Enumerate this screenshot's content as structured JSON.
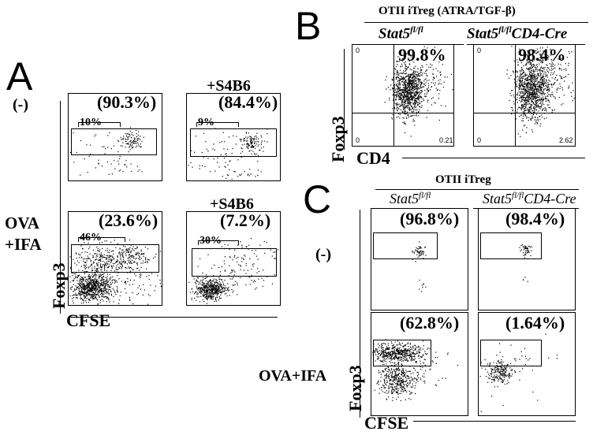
{
  "panels": {
    "A": {
      "letter": "A",
      "row_labels": {
        "control": "(-)",
        "ova_line1": "OVA",
        "ova_line2": "+IFA"
      },
      "treatment_label": "+S4B6",
      "plots": [
        {
          "pct": "(90.3%)",
          "gate_pct": "10%"
        },
        {
          "pct": "(84.4%)",
          "gate_pct": "9%"
        },
        {
          "pct": "(23.6%)",
          "gate_pct": "46%"
        },
        {
          "pct": "(7.2%)",
          "gate_pct": "30%"
        }
      ],
      "y_axis": "Foxp3",
      "x_axis": "CFSE"
    },
    "B": {
      "letter": "B",
      "header": "OTII iTreg (ATRA/TGF-β)",
      "col1_gene": "Stat5",
      "col1_sup": "fl/fl",
      "col2_gene": "Stat5",
      "col2_sup": "fl/fl",
      "col2_suffix": "CD4-Cre",
      "plots": [
        {
          "pct": "99.8%",
          "q_ul": "0",
          "q_ll": "0",
          "q_lr": "0.21"
        },
        {
          "pct": "98.4%",
          "q_ul": "0",
          "q_ll": "0",
          "q_lr": "2.62"
        }
      ],
      "y_axis": "Foxp3",
      "x_axis": "CD4"
    },
    "C": {
      "letter": "C",
      "header": "OTII iTreg",
      "col1_gene": "Stat5",
      "col1_sup": "fl/fl",
      "col2_gene": "Stat5",
      "col2_sup": "fl/fl",
      "col2_suffix": "CD4-Cre",
      "row_labels": {
        "control": "(-)",
        "ova": "OVA+IFA"
      },
      "plots": [
        {
          "pct": "(96.8%)"
        },
        {
          "pct": "(98.4%)"
        },
        {
          "pct": "(62.8%)"
        },
        {
          "pct": "(1.64%)"
        }
      ],
      "y_axis": "Foxp3",
      "x_axis": "CFSE"
    }
  }
}
